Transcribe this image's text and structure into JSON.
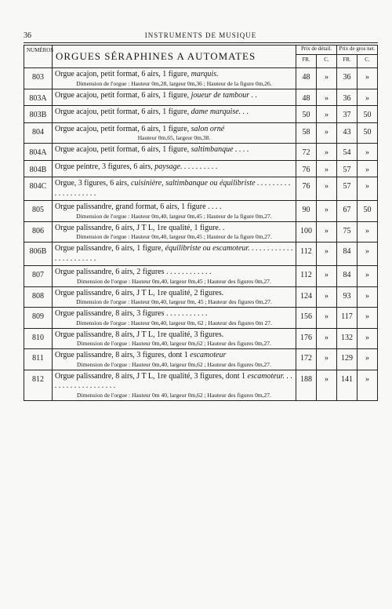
{
  "page_number": "36",
  "running_head": "INSTRUMENTS DE MUSIQUE",
  "section_title": "ORGUES SÉRAPHINES A AUTOMATES",
  "col_headers": {
    "numeros": "NUMÉROS",
    "prix_detail": "Prix de détail.",
    "prix_gros": "Prix de gros net.",
    "fr": "FR.",
    "c": "C."
  },
  "rows": [
    {
      "num": "803",
      "desc": "Orgue acajon, petit format, 6 airs, 1 figure, ",
      "desc_ital": "marquis.",
      "sub": "Dimension de l'orgue : Hauteur 0m,28, largeur 0m,36 ; Hauteur de la figure 0m,26.",
      "p1": "48",
      "p2": "»",
      "p3": "36",
      "p4": "»"
    },
    {
      "num": "803A",
      "desc": "Orgue acajou, petit format, 6 airs, 1 figure, ",
      "desc_ital": "joueur de tambour . .",
      "sub": "",
      "p1": "48",
      "p2": "»",
      "p3": "36",
      "p4": "»"
    },
    {
      "num": "803B",
      "desc": "Orgue acajou, petit format, 6 airs, 1 figure, ",
      "desc_ital": "dame marquise. . .",
      "sub": "",
      "p1": "50",
      "p2": "»",
      "p3": "37",
      "p4": "50"
    },
    {
      "num": "804",
      "desc": "Orgue acajou, petit format, 6 airs, 1 figure, ",
      "desc_ital": "salon orné",
      "sub": "Hauteur 0m,65, largeur 0m,38.",
      "p1": "58",
      "p2": "»",
      "p3": "43",
      "p4": "50"
    },
    {
      "num": "804A",
      "desc": "Orgue acajou, petit format, 6 airs, 1 figure, ",
      "desc_ital": "saltimbanque . . . .",
      "sub": "",
      "p1": "72",
      "p2": "»",
      "p3": "54",
      "p4": "»"
    },
    {
      "num": "804B",
      "desc": "Orgue peintre, 3 figures, 6 airs, ",
      "desc_ital": "paysage. . . . . . . . . .",
      "sub": "",
      "p1": "76",
      "p2": "»",
      "p3": "57",
      "p4": "»"
    },
    {
      "num": "804C",
      "desc": "Orgue, 3 figures, 6 airs, ",
      "desc_ital": "cuisinière, saltimbanque ou équilibriste . . . . . . . . . . . . . . . . . . . .",
      "sub": "",
      "p1": "76",
      "p2": "»",
      "p3": "57",
      "p4": "»"
    },
    {
      "num": "805",
      "desc": "Orgue palissandre, grand format, 6 airs, 1 figure . . . .",
      "desc_ital": "",
      "sub": "Dimension de l'orgue : Hauteur 0m,40, largeur 0m,45 ; Hauteur de la figure 0m,27.",
      "p1": "90",
      "p2": "»",
      "p3": "67",
      "p4": "50"
    },
    {
      "num": "806",
      "desc": "Orgue palissandre, 6 airs, J T L, 1re qualité, 1 figure. .",
      "desc_ital": "",
      "sub": "Dimension de l'orgue : Hauteur 0m,40, largeur 0m,45 ; Hauteur de la figure 0m,27.",
      "p1": "100",
      "p2": "»",
      "p3": "75",
      "p4": "»"
    },
    {
      "num": "806B",
      "desc": "Orgue palissandre, 6 airs, 1 figure, ",
      "desc_ital": "équilibriste ou escamoteur. . . . . . . . . . . . . . . . . . . . . . .",
      "sub": "",
      "p1": "112",
      "p2": "»",
      "p3": "84",
      "p4": "»"
    },
    {
      "num": "807",
      "desc": "Orgue palissandre, 6 airs, 2 figures . . . . . . . . . . . .",
      "desc_ital": "",
      "sub": "Dimension de l'orgue : Hauteur 0m,40, largeur 0m,45 ; Hauteur des figures 0m,27.",
      "p1": "112",
      "p2": "»",
      "p3": "84",
      "p4": "»"
    },
    {
      "num": "808",
      "desc": "Orgue palissandre, 6 airs, J T L, 1re qualité, 2 figures.",
      "desc_ital": "",
      "sub": "Dimension de l'orgue : Hauteur 0m,40, largeur 0m, 45 ; Hauteur des figures 0m,27.",
      "p1": "124",
      "p2": "»",
      "p3": "93",
      "p4": "»"
    },
    {
      "num": "809",
      "desc": "Orgue palissandre, 8 airs, 3 figures . . . . . . . . . . .",
      "desc_ital": "",
      "sub": "Dimension de l'orgue : Hauteur 0m,40, largeur 0m, 62 ; Hauteur des figures 0m 27.",
      "p1": "156",
      "p2": "»",
      "p3": "117",
      "p4": "»"
    },
    {
      "num": "810",
      "desc": "Orgue palissandre, 8 airs, J T L, 1re qualité, 3 figures.",
      "desc_ital": "",
      "sub": "Dimension de l'orgue : Hauteur 0m,40, largeur 0m,62 ; Hauteur des figures 0m,27.",
      "p1": "176",
      "p2": "»",
      "p3": "132",
      "p4": "»"
    },
    {
      "num": "811",
      "desc": "Orgue palissandre, 8 airs, 3 figures, dont 1 ",
      "desc_ital": "escamoteur",
      "sub": "Dimension de l'orgue : Hauteur 0m,40, largeur 0m,62 ; Hauteur des figures 0m,27.",
      "p1": "172",
      "p2": "»",
      "p3": "129",
      "p4": "»"
    },
    {
      "num": "812",
      "desc": "Orgue palissandre, 8 airs, J T L, 1re qualité, 3 figures, dont 1 ",
      "desc_ital": "escamoteur. . . . . . . . . . . . . . . . . . .",
      "sub": "Dimension de l'orgue : Hauteur 0m 40, largeur 0m,62 ; Hauteur des figures 0m,27.",
      "p1": "188",
      "p2": "»",
      "p3": "141",
      "p4": "»"
    }
  ]
}
